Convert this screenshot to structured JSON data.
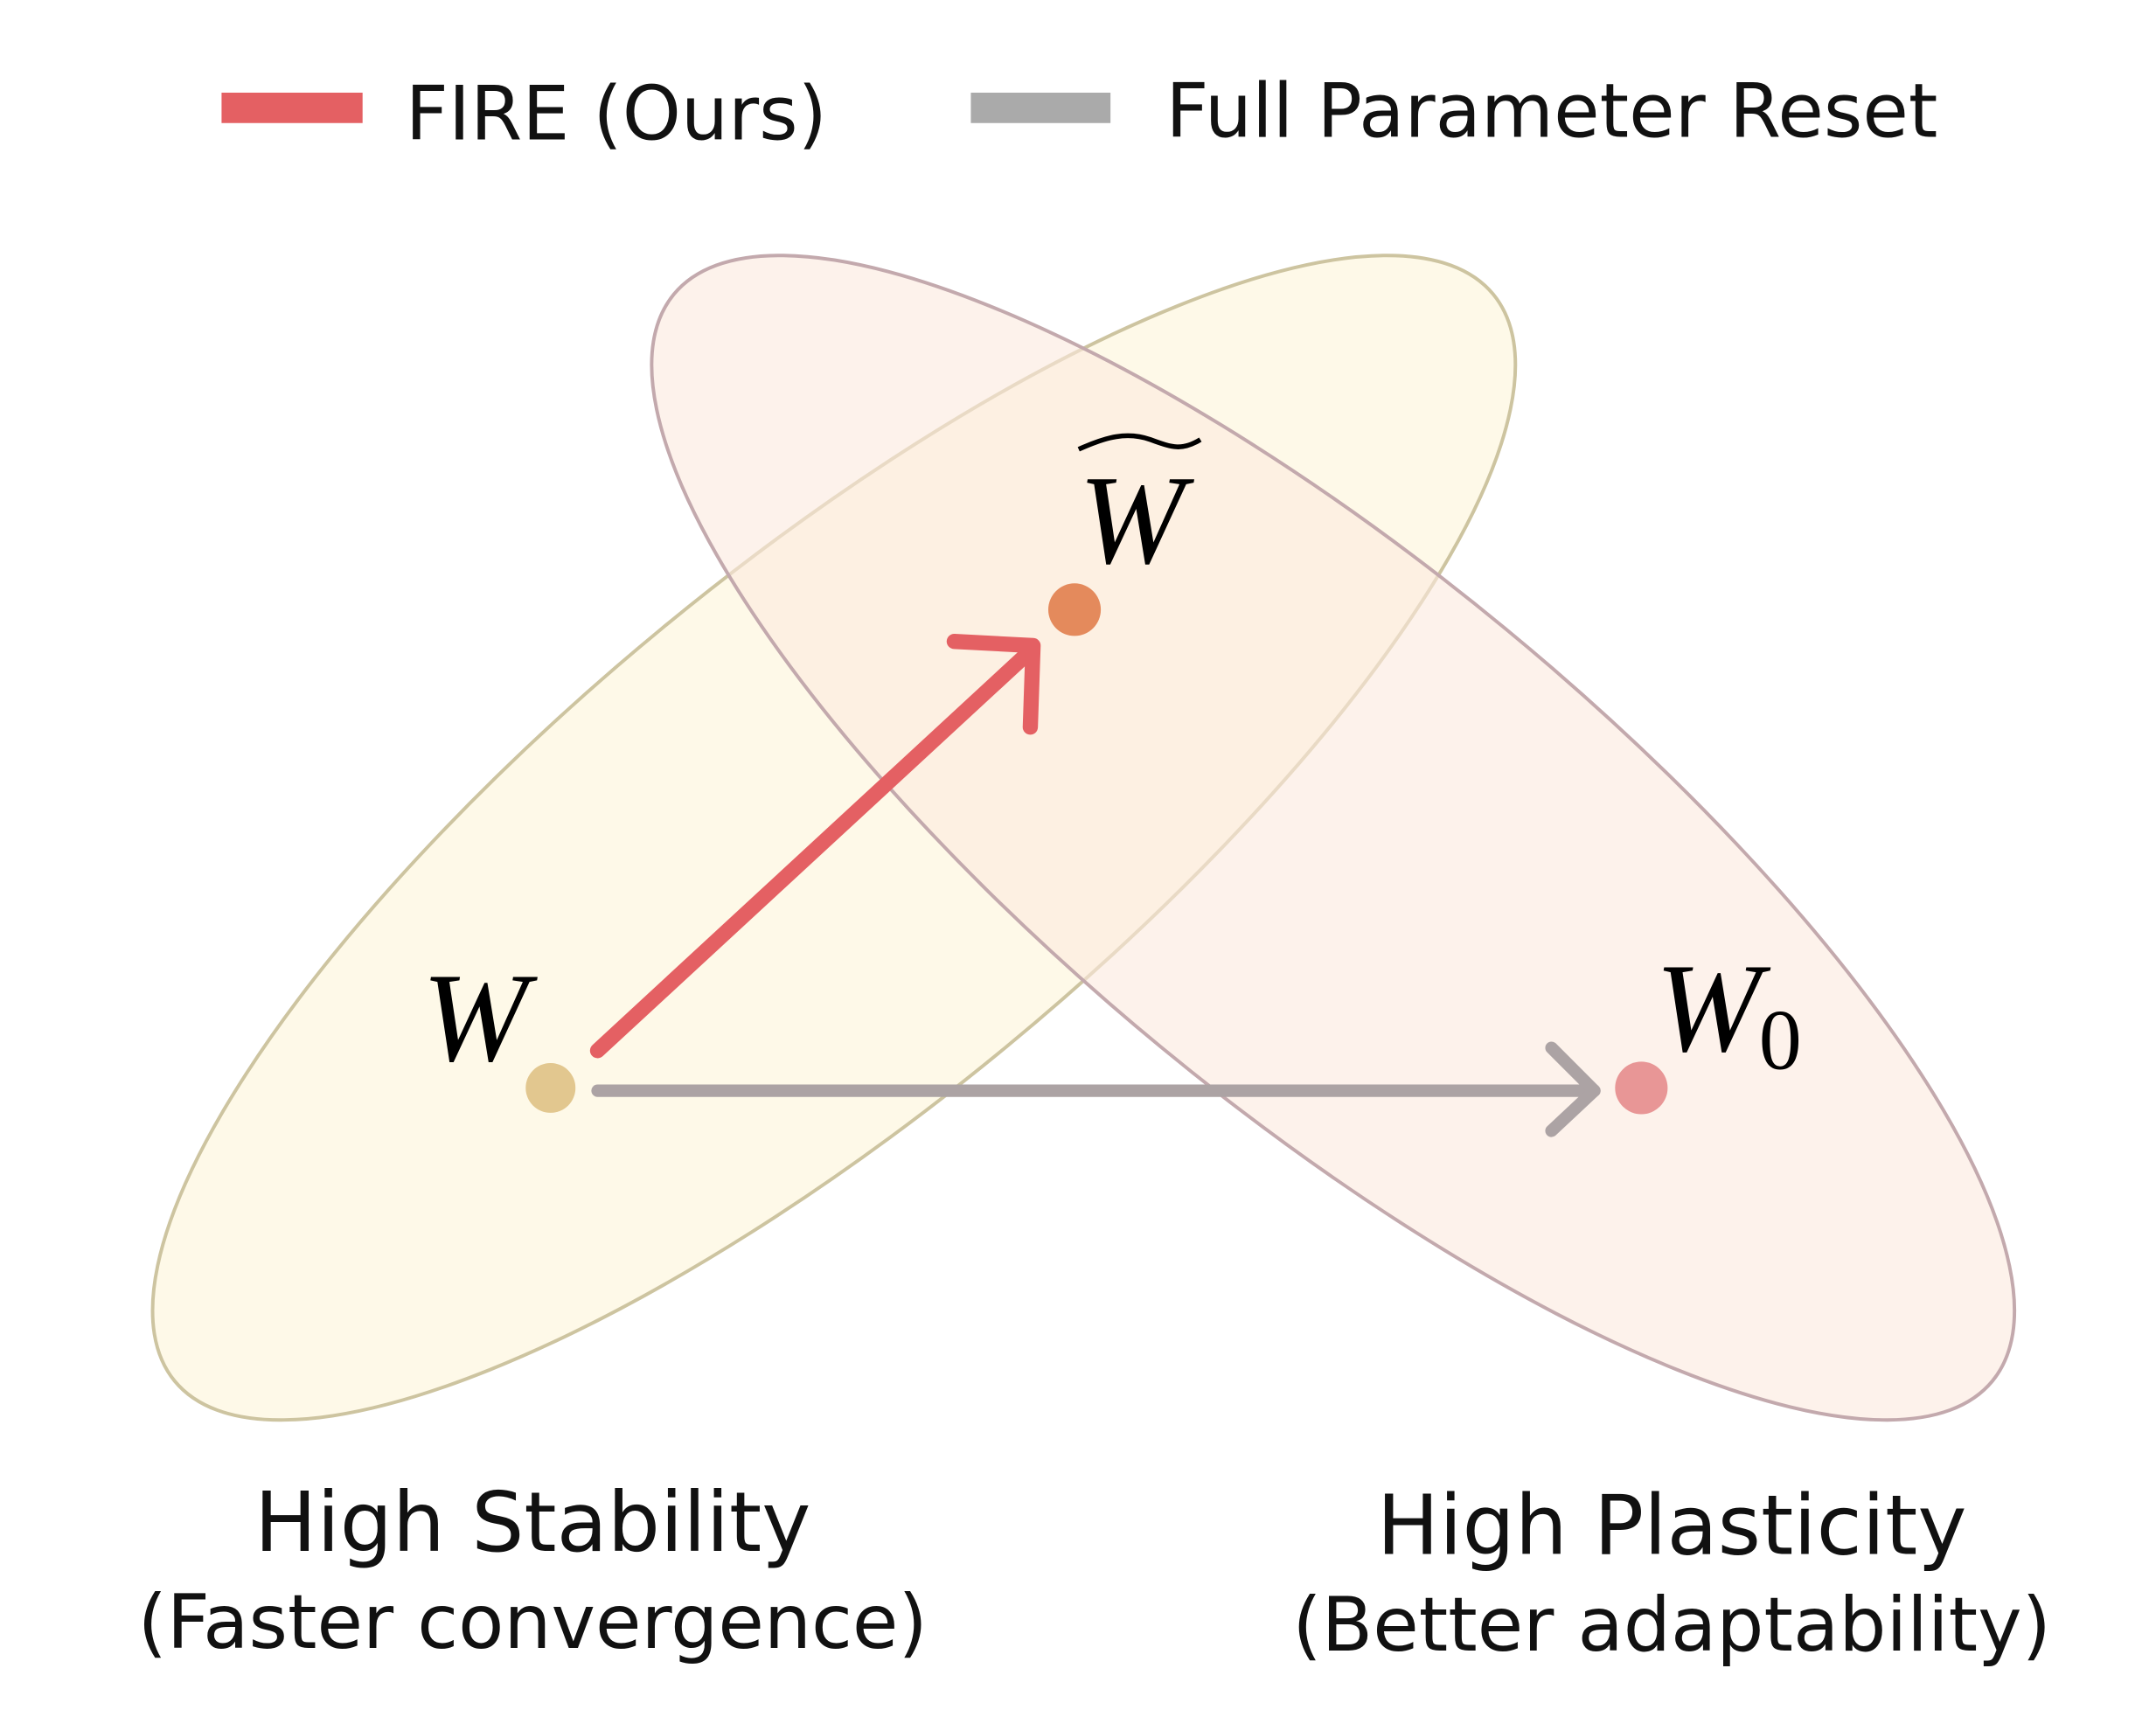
{
  "legend": [
    {
      "label": "FIRE (Ours)",
      "color": "#e46063"
    },
    {
      "label": "Full Parameter Reset",
      "color": "#aaaaaa"
    }
  ],
  "regions": {
    "stability": {
      "title": "High Stability",
      "subtitle": "(Faster convergence)",
      "fill": "#fdf8e6",
      "stroke": "#d3cba8"
    },
    "plasticity": {
      "title": "High Plasticity",
      "subtitle": "(Better adaptability)",
      "fill": "#fbefe6",
      "stroke": "#c6aeb0"
    }
  },
  "points": {
    "w": {
      "label": "W",
      "color": "#e2c78f"
    },
    "w_tilde": {
      "label": "W",
      "accent": "~",
      "color": "#e48a5c"
    },
    "w0": {
      "label": "W",
      "subscript": "0",
      "color": "#e89696"
    }
  },
  "arrows": {
    "fire": {
      "color": "#e46063"
    },
    "reset": {
      "color": "#aca3a4"
    }
  }
}
